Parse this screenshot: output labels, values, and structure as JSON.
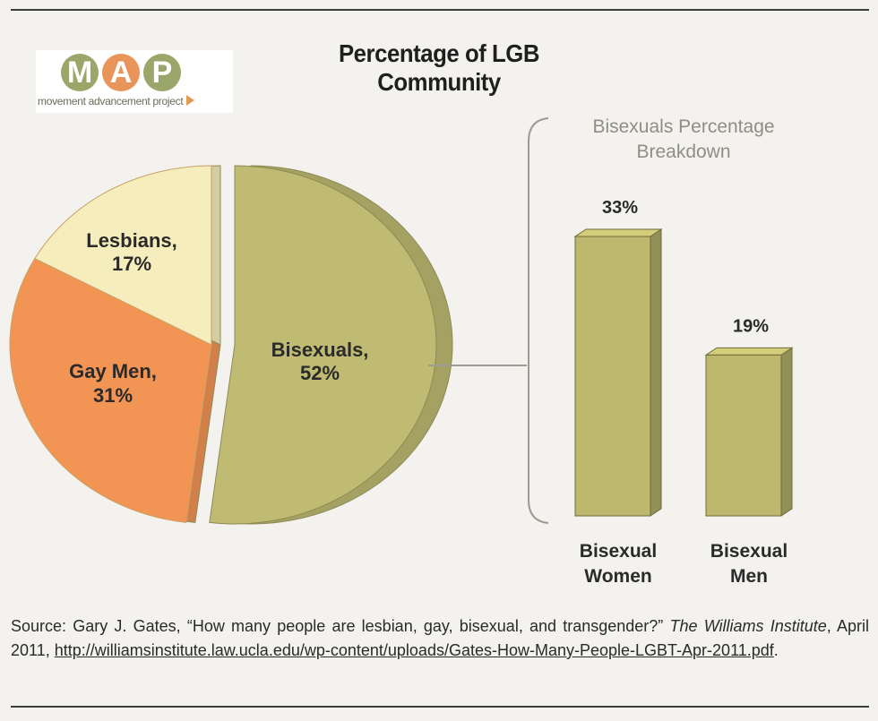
{
  "header": {
    "title": "Percentage of LGB Community"
  },
  "logo": {
    "letters": [
      "M",
      "A",
      "P"
    ],
    "letter_colors": [
      "#9aa66a",
      "#e8945a",
      "#9aa66a"
    ],
    "tagline": "movement advancement project"
  },
  "colors": {
    "bisexuals": "#bfbb72",
    "gay_men": "#f29554",
    "lesbians": "#f6edbd",
    "bars": "#bdb86d"
  },
  "chart_data": [
    {
      "type": "pie",
      "title": "Percentage of LGB Community",
      "slices": [
        {
          "label_line1": "Bisexuals,",
          "label_line2": "52%",
          "value": 52
        },
        {
          "label_line1": "Gay Men,",
          "label_line2": "31%",
          "value": 31
        },
        {
          "label_line1": "Lesbians,",
          "label_line2": "17%",
          "value": 17
        }
      ]
    },
    {
      "type": "bar",
      "title_line1": "Bisexuals Percentage",
      "title_line2": "Breakdown",
      "categories": [
        {
          "line1": "Bisexual",
          "line2": "Women"
        },
        {
          "line1": "Bisexual",
          "line2": "Men"
        }
      ],
      "values": [
        33,
        19
      ],
      "data_labels": [
        "33%",
        "19%"
      ]
    }
  ],
  "source": {
    "prefix": "Source:  Gary  J.  Gates,  “How  many  people  are  lesbian,  gay,  bisexual,  and  transgender?”",
    "institute": "The Williams Institute",
    "date": ", April 2011, ",
    "url": "http://williamsinstitute.law.ucla.edu/wp-content/uploads/Gates-How-Many-People-LGBT-Apr-2011.pdf",
    "suffix": "."
  }
}
